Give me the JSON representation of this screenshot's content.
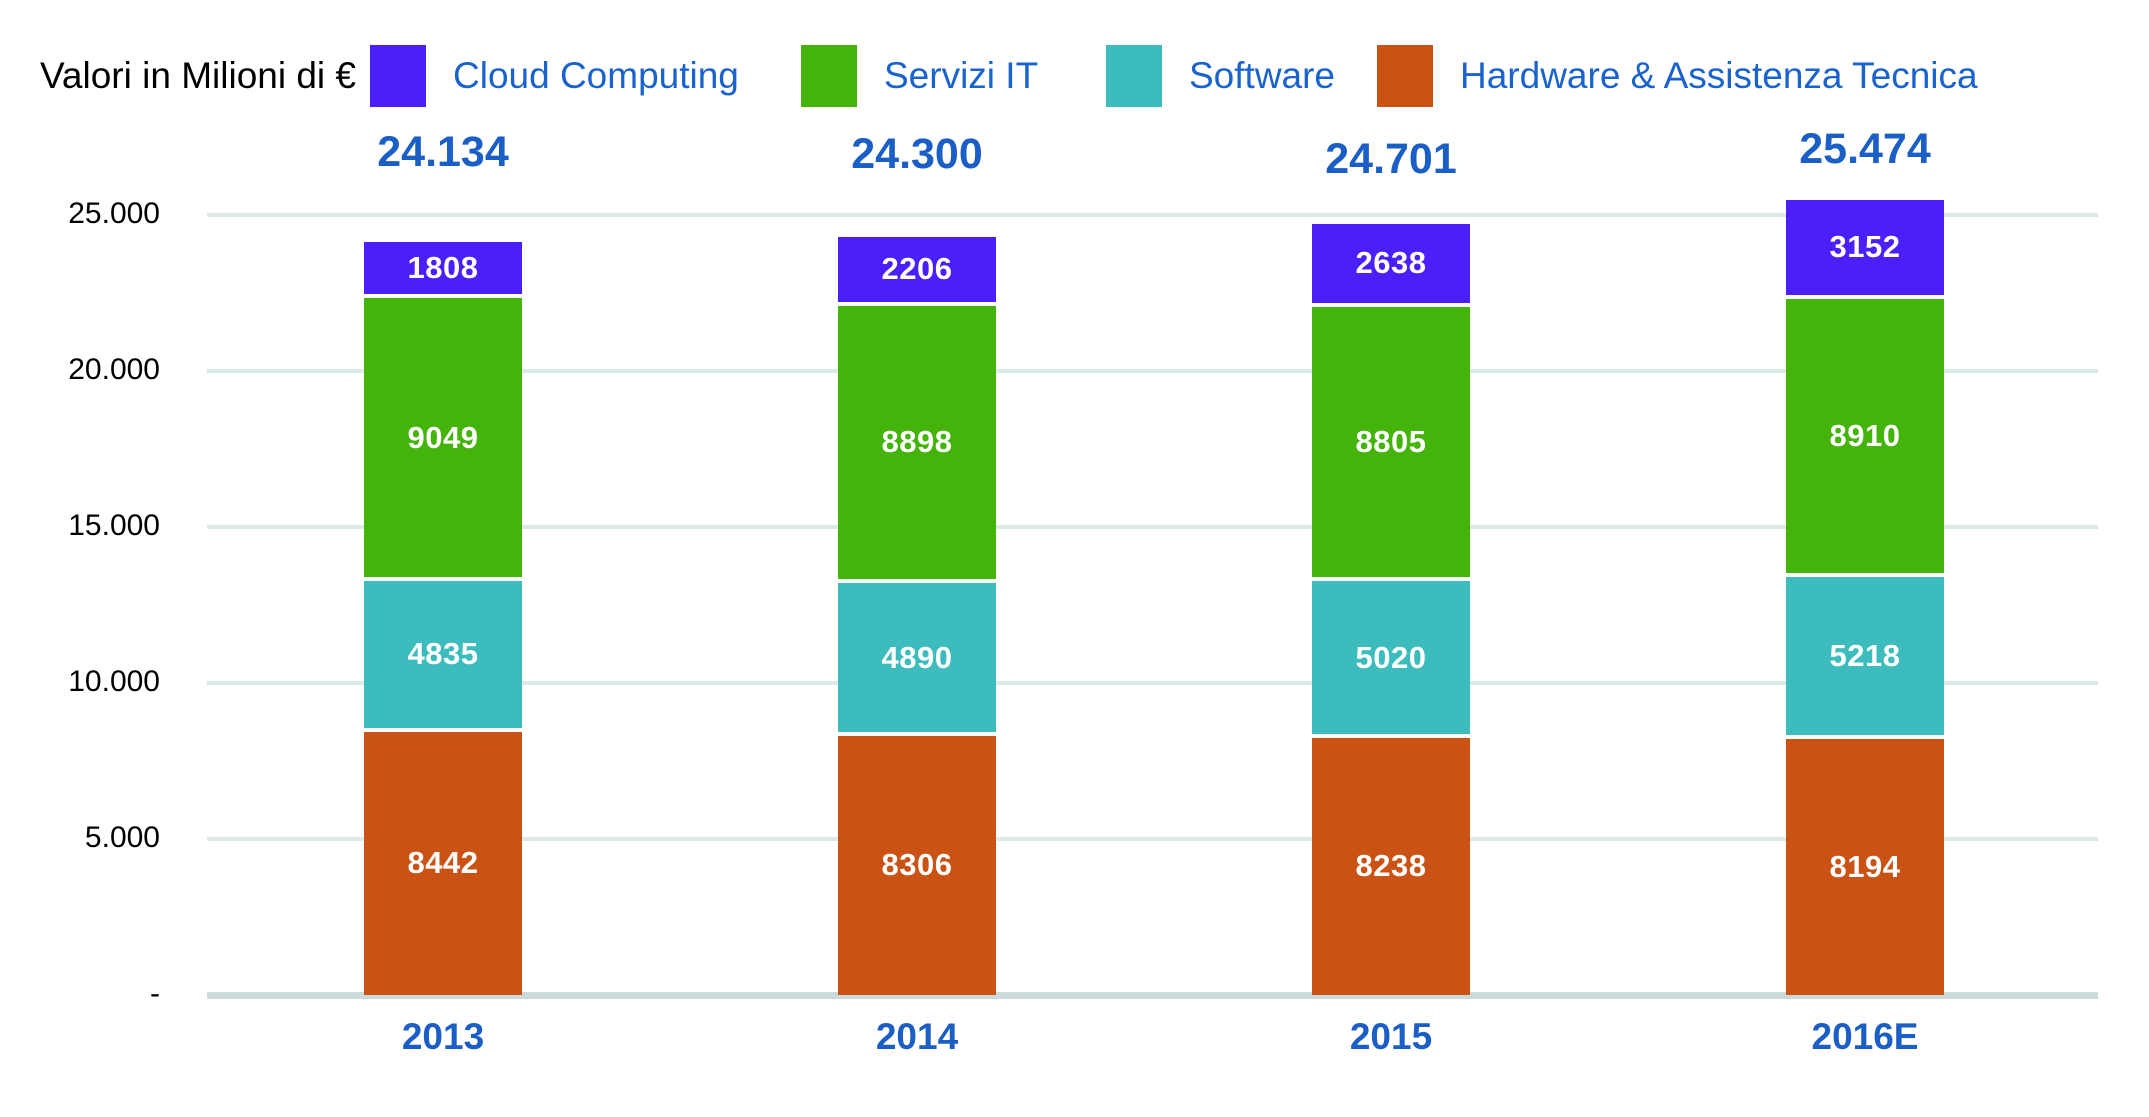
{
  "chart_data": {
    "type": "bar",
    "stacked": true,
    "unit_note": "Valori in Milioni di €",
    "categories": [
      "2013",
      "2014",
      "2015",
      "2016E"
    ],
    "series": [
      {
        "name": "Hardware & Assistenza Tecnica",
        "color": "#C95214",
        "values": [
          8442,
          8306,
          8238,
          8194
        ]
      },
      {
        "name": "Software",
        "color": "#3DBCBE",
        "values": [
          4835,
          4890,
          5020,
          5218
        ]
      },
      {
        "name": "Servizi IT",
        "color": "#44B30A",
        "values": [
          9049,
          8898,
          8805,
          8910
        ]
      },
      {
        "name": "Cloud Computing",
        "color": "#4A1FFA",
        "values": [
          1808,
          2206,
          2638,
          3152
        ]
      }
    ],
    "totals": [
      "24.134",
      "24.300",
      "24.701",
      "25.474"
    ],
    "yticks": [
      {
        "label": "-",
        "value": 0
      },
      {
        "label": "5.000",
        "value": 5000
      },
      {
        "label": "10.000",
        "value": 10000
      },
      {
        "label": "15.000",
        "value": 15000
      },
      {
        "label": "20.000",
        "value": 20000
      },
      {
        "label": "25.000",
        "value": 25000
      }
    ],
    "ylim": [
      0,
      25000
    ],
    "grid": true,
    "legend_position": "top"
  },
  "legend": [
    {
      "label": "Cloud Computing",
      "color": "#4A1FFA"
    },
    {
      "label": "Servizi IT",
      "color": "#44B30A"
    },
    {
      "label": "Software",
      "color": "#3DBCBE"
    },
    {
      "label": "Hardware & Assistenza Tecnica",
      "color": "#C95214"
    }
  ],
  "colors": {
    "label_blue": "#1B5EC6",
    "legend_blue": "#1A63CD",
    "gridline": "#DCE9E9",
    "baseline": "#CBDBDB",
    "axis_text": "#000000"
  }
}
